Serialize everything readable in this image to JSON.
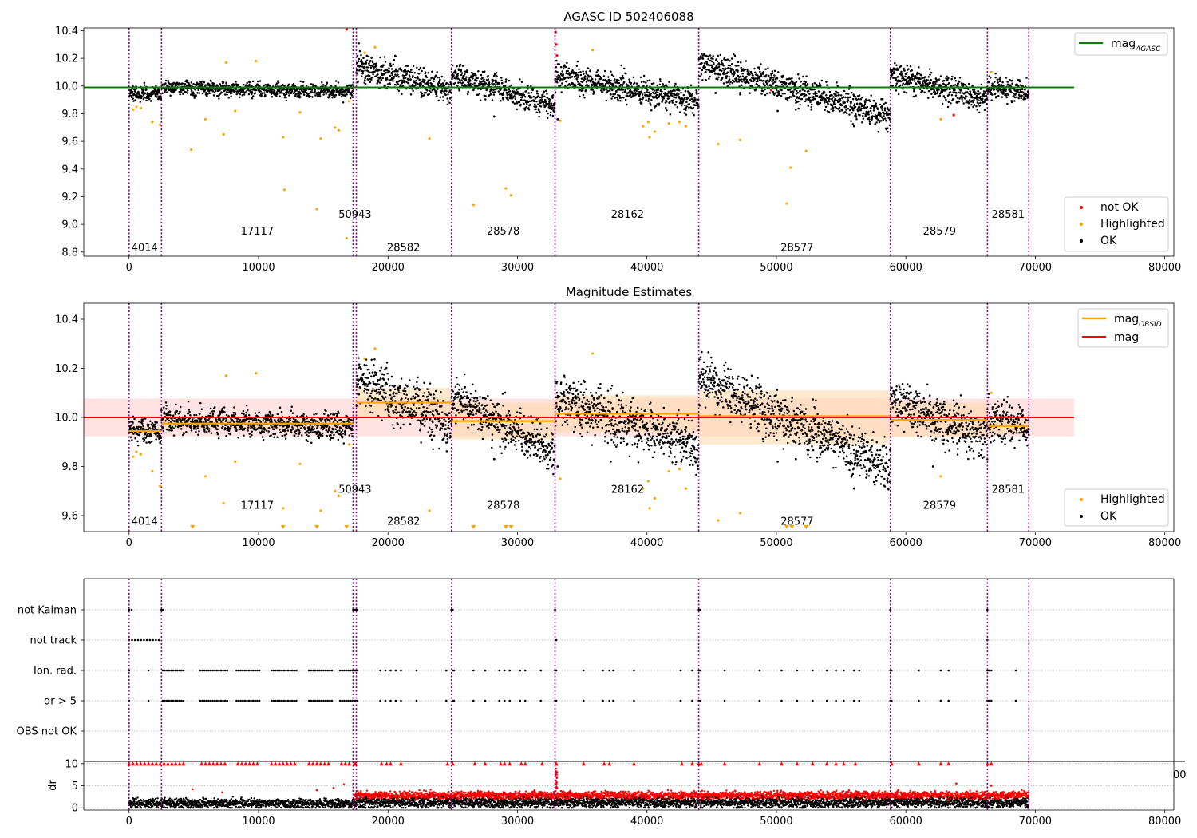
{
  "figure": {
    "agasc_id": "AGASC ID 502406088",
    "top_title": "AGASC ID 502406088",
    "middle_title": "Magnitude Estimates"
  },
  "colors": {
    "agasc": "#008000",
    "mag": "#ff0000",
    "mag_obsid": "#ffa500",
    "ok": "#000000",
    "highlighted": "#ffa500",
    "not_ok": "#ff0000",
    "obsid_line": "#800080",
    "mag_band": "#ffcccc",
    "obsid_band": "#ffd8a8",
    "flag_grid": "#b0b0b0"
  },
  "chart_data": [
    {
      "id": "top",
      "type": "scatter",
      "title": "AGASC ID 502406088",
      "xlim": [
        -3500,
        80700
      ],
      "ylim": [
        8.77,
        10.42
      ],
      "xticks": [
        0,
        10000,
        20000,
        30000,
        40000,
        50000,
        60000,
        70000,
        80000
      ],
      "yticks": [
        8.8,
        9.0,
        9.2,
        9.4,
        9.6,
        9.8,
        10.0,
        10.2,
        10.4
      ],
      "ytick_labels": [
        "8.8",
        "9.0",
        "9.2",
        "9.4",
        "9.6",
        "9.8",
        "10.0",
        "10.2",
        "10.4"
      ],
      "legend": {
        "upper_right": [
          {
            "label": "mag",
            "subscript": "AGASC",
            "kind": "line",
            "color": "#008000"
          }
        ],
        "lower_right": [
          {
            "label": "not OK",
            "kind": "dot",
            "color": "#ff0000"
          },
          {
            "label": "Highlighted",
            "kind": "dot",
            "color": "#ffa500"
          },
          {
            "label": "OK",
            "kind": "dot",
            "color": "#000000"
          }
        ]
      },
      "agasc_line": {
        "x": [
          -3500,
          73000
        ],
        "y": 9.99
      },
      "obsid_boundaries": [
        0,
        2500,
        17300,
        17550,
        24900,
        32900,
        44000,
        58800,
        66300,
        69500
      ],
      "obsid_labels": [
        {
          "text": "4014",
          "x": 1200,
          "y": 8.83
        },
        {
          "text": "17117",
          "x": 9900,
          "y": 8.95
        },
        {
          "text": "50943",
          "x": 17450,
          "y": 9.07
        },
        {
          "text": "28582",
          "x": 21200,
          "y": 8.83
        },
        {
          "text": "28578",
          "x": 28900,
          "y": 8.95
        },
        {
          "text": "28162",
          "x": 38500,
          "y": 9.07
        },
        {
          "text": "28577",
          "x": 51600,
          "y": 8.83
        },
        {
          "text": "28579",
          "x": 62600,
          "y": 8.95
        },
        {
          "text": "28581",
          "x": 67900,
          "y": 9.07
        }
      ],
      "segments": [
        {
          "x0": 0,
          "x1": 2500,
          "start": 9.95,
          "end": 9.94,
          "spread": 0.025
        },
        {
          "x0": 2500,
          "x1": 17300,
          "start": 9.99,
          "end": 9.96,
          "spread": 0.025
        },
        {
          "x0": 17550,
          "x1": 24900,
          "start": 10.15,
          "end": 9.97,
          "spread": 0.05
        },
        {
          "x0": 24900,
          "x1": 32900,
          "start": 10.08,
          "end": 9.86,
          "spread": 0.045
        },
        {
          "x0": 32900,
          "x1": 44000,
          "start": 10.08,
          "end": 9.88,
          "spread": 0.05
        },
        {
          "x0": 44000,
          "x1": 58800,
          "start": 10.16,
          "end": 9.79,
          "spread": 0.05
        },
        {
          "x0": 58800,
          "x1": 66300,
          "start": 10.08,
          "end": 9.91,
          "spread": 0.045
        },
        {
          "x0": 66300,
          "x1": 69500,
          "start": 10.0,
          "end": 9.95,
          "spread": 0.04
        }
      ],
      "highlighted_points": [
        [
          320,
          9.83
        ],
        [
          560,
          9.85
        ],
        [
          900,
          9.84
        ],
        [
          1800,
          9.74
        ],
        [
          2400,
          9.72
        ],
        [
          4800,
          9.54
        ],
        [
          5900,
          9.76
        ],
        [
          7300,
          9.65
        ],
        [
          7500,
          10.17
        ],
        [
          8200,
          9.82
        ],
        [
          9800,
          10.18
        ],
        [
          11900,
          9.63
        ],
        [
          12000,
          9.25
        ],
        [
          13200,
          9.81
        ],
        [
          14500,
          9.11
        ],
        [
          14800,
          9.62
        ],
        [
          15900,
          9.7
        ],
        [
          16200,
          9.68
        ],
        [
          16800,
          8.9
        ],
        [
          17000,
          9.89
        ],
        [
          18200,
          10.24
        ],
        [
          19000,
          10.28
        ],
        [
          23200,
          9.62
        ],
        [
          26600,
          9.14
        ],
        [
          29100,
          9.26
        ],
        [
          29500,
          9.21
        ],
        [
          33300,
          9.75
        ],
        [
          35800,
          10.26
        ],
        [
          39700,
          9.71
        ],
        [
          40100,
          9.74
        ],
        [
          40200,
          9.63
        ],
        [
          40600,
          9.67
        ],
        [
          41700,
          9.73
        ],
        [
          42500,
          9.74
        ],
        [
          43000,
          9.71
        ],
        [
          45500,
          9.58
        ],
        [
          47200,
          9.61
        ],
        [
          50800,
          9.15
        ],
        [
          51100,
          9.41
        ],
        [
          52300,
          9.53
        ],
        [
          62700,
          9.76
        ],
        [
          66600,
          10.1
        ]
      ],
      "not_ok_points": [
        [
          16800,
          10.41
        ],
        [
          32950,
          10.39
        ],
        [
          33000,
          10.3
        ],
        [
          33050,
          10.22
        ],
        [
          49600,
          9.97
        ],
        [
          63700,
          9.79
        ]
      ],
      "outlier_ok_points": [
        [
          4100,
          9.97
        ],
        [
          28200,
          9.78
        ],
        [
          33100,
          9.76
        ],
        [
          37200,
          9.94
        ],
        [
          38800,
          9.92
        ],
        [
          45300,
          9.95
        ],
        [
          47200,
          9.94
        ],
        [
          50100,
          9.82
        ],
        [
          51500,
          9.83
        ],
        [
          56000,
          9.71
        ],
        [
          62100,
          9.92
        ]
      ]
    },
    {
      "id": "middle",
      "type": "scatter",
      "title": "Magnitude Estimates",
      "xlim": [
        -3500,
        80700
      ],
      "ylim": [
        9.535,
        10.465
      ],
      "xticks": [
        0,
        10000,
        20000,
        30000,
        40000,
        50000,
        60000,
        70000,
        80000
      ],
      "yticks": [
        9.6,
        9.8,
        10.0,
        10.2,
        10.4
      ],
      "ytick_labels": [
        "9.6",
        "9.8",
        "10.0",
        "10.2",
        "10.4"
      ],
      "legend": {
        "upper_right": [
          {
            "label": "mag",
            "subscript": "OBSID",
            "kind": "line",
            "color": "#ffa500"
          },
          {
            "label": "mag",
            "kind": "line",
            "color": "#ff0000"
          }
        ],
        "lower_right": [
          {
            "label": "Highlighted",
            "kind": "dot",
            "color": "#ffa500"
          },
          {
            "label": "OK",
            "kind": "dot",
            "color": "#000000"
          }
        ]
      },
      "mag_line": {
        "x": [
          -3500,
          73000
        ],
        "y": 10.0,
        "band": [
          9.923,
          10.077
        ]
      },
      "obsid_means": [
        {
          "x0": 0,
          "x1": 2500,
          "y": 9.945,
          "band": [
            9.93,
            9.96
          ]
        },
        {
          "x0": 2500,
          "x1": 17300,
          "y": 9.975,
          "band": [
            9.955,
            9.995
          ]
        },
        {
          "x0": 17550,
          "x1": 24900,
          "y": 10.06,
          "band": [
            10.0,
            10.12
          ]
        },
        {
          "x0": 24900,
          "x1": 32900,
          "y": 9.985,
          "band": [
            9.91,
            10.06
          ]
        },
        {
          "x0": 32900,
          "x1": 44000,
          "y": 10.015,
          "band": [
            9.94,
            10.09
          ]
        },
        {
          "x0": 44000,
          "x1": 58800,
          "y": 10.005,
          "band": [
            9.89,
            10.11
          ]
        },
        {
          "x0": 58800,
          "x1": 66300,
          "y": 9.99,
          "band": [
            9.92,
            10.06
          ]
        },
        {
          "x0": 66300,
          "x1": 69500,
          "y": 9.965,
          "band": [
            9.93,
            10.0
          ]
        }
      ],
      "obsid_boundaries": [
        0,
        2500,
        17300,
        17550,
        24900,
        32900,
        44000,
        58800,
        66300,
        69500
      ],
      "obsid_labels": [
        {
          "text": "4014",
          "x": 1200,
          "y": 9.575
        },
        {
          "text": "17117",
          "x": 9900,
          "y": 9.64
        },
        {
          "text": "50943",
          "x": 17450,
          "y": 9.705
        },
        {
          "text": "28582",
          "x": 21200,
          "y": 9.575
        },
        {
          "text": "28578",
          "x": 28900,
          "y": 9.64
        },
        {
          "text": "28162",
          "x": 38500,
          "y": 9.705
        },
        {
          "text": "28577",
          "x": 51600,
          "y": 9.575
        },
        {
          "text": "28579",
          "x": 62600,
          "y": 9.64
        },
        {
          "text": "28581",
          "x": 67900,
          "y": 9.705
        }
      ],
      "clipped_low_markers": [
        4900,
        11900,
        14500,
        16800,
        26600,
        29100,
        29500,
        50800,
        51200,
        52300
      ],
      "highlighted_points": [
        [
          320,
          9.84
        ],
        [
          560,
          9.86
        ],
        [
          900,
          9.85
        ],
        [
          1800,
          9.78
        ],
        [
          2400,
          9.72
        ],
        [
          5900,
          9.76
        ],
        [
          7300,
          9.65
        ],
        [
          7500,
          10.17
        ],
        [
          8200,
          9.82
        ],
        [
          9800,
          10.18
        ],
        [
          11900,
          9.63
        ],
        [
          13200,
          9.81
        ],
        [
          14800,
          9.62
        ],
        [
          15900,
          9.7
        ],
        [
          16200,
          9.68
        ],
        [
          17000,
          9.89
        ],
        [
          18200,
          10.24
        ],
        [
          19000,
          10.28
        ],
        [
          23200,
          9.62
        ],
        [
          33300,
          9.75
        ],
        [
          35800,
          10.26
        ],
        [
          39700,
          9.71
        ],
        [
          40100,
          9.74
        ],
        [
          40200,
          9.63
        ],
        [
          40600,
          9.67
        ],
        [
          41700,
          9.78
        ],
        [
          42500,
          9.79
        ],
        [
          43000,
          9.71
        ],
        [
          45500,
          9.58
        ],
        [
          47200,
          9.61
        ],
        [
          62700,
          9.76
        ],
        [
          66600,
          10.1
        ]
      ],
      "outlier_ok_points": [
        [
          28200,
          9.83
        ],
        [
          33100,
          9.8
        ],
        [
          37200,
          9.82
        ],
        [
          50100,
          9.82
        ],
        [
          51500,
          9.83
        ],
        [
          56000,
          9.71
        ],
        [
          62100,
          9.8
        ]
      ]
    },
    {
      "id": "flags",
      "type": "scatter",
      "xlim": [
        -3500,
        80700
      ],
      "categories": [
        "not Kalman",
        "not track",
        "Ion. rad.",
        "dr > 5",
        "OBS not OK"
      ],
      "obsid_boundaries": [
        0,
        2500,
        17300,
        17550,
        24900,
        32900,
        44000,
        58800,
        66300,
        69500
      ],
      "stray_tick_label": "00",
      "not_kalman": [
        0,
        200,
        2500,
        2600,
        17300,
        17400,
        17500,
        17600,
        24900,
        25000,
        32900,
        44000,
        44100,
        58800,
        66300
      ],
      "not_track_range": [
        0,
        2400
      ],
      "not_track_extra": [
        33000,
        66300
      ],
      "flag_clusters": [
        [
          2600,
          4300
        ],
        [
          5500,
          7600
        ],
        [
          8300,
          10200
        ],
        [
          11000,
          13000
        ],
        [
          13900,
          15700
        ],
        [
          16300,
          17300
        ]
      ],
      "flag_sparse": [
        0,
        1500,
        17400,
        17500,
        17600,
        19400,
        19800,
        20200,
        20600,
        21000,
        22200,
        24500,
        25000,
        25100,
        26600,
        27500,
        28600,
        29000,
        29400,
        30200,
        30600,
        31800,
        32900,
        33000,
        35100,
        36600,
        37100,
        37400,
        39000,
        42600,
        43500,
        44000,
        44100,
        46000,
        48700,
        50400,
        51600,
        52800,
        53900,
        54600,
        55200,
        56000,
        56400,
        58800,
        58900,
        61000,
        62700,
        63300,
        66300,
        66400,
        66600,
        68500
      ]
    },
    {
      "id": "dr",
      "type": "scatter",
      "ylabel": "dr",
      "xlim": [
        -3500,
        80700
      ],
      "ylim": [
        -0.5,
        10.5
      ],
      "xticks": [
        0,
        10000,
        20000,
        30000,
        40000,
        50000,
        60000,
        70000,
        80000
      ],
      "yticks": [
        0,
        5,
        10
      ],
      "ytick_labels": [
        "0",
        "5",
        "10"
      ],
      "obsid_boundaries": [
        0,
        2500,
        17300,
        17550,
        24900,
        32900,
        44000,
        58800,
        66300,
        69500
      ],
      "clipped_high": [
        0,
        300,
        600,
        900,
        1200,
        1500,
        1800,
        2100,
        2400,
        2700,
        3000,
        3300,
        3600,
        3900,
        4200,
        5600,
        5900,
        6200,
        6500,
        6800,
        7100,
        7400,
        8400,
        8700,
        9000,
        9300,
        9600,
        9900,
        11000,
        11300,
        11600,
        11900,
        12200,
        12500,
        12800,
        13900,
        14200,
        14500,
        14800,
        15100,
        15400,
        16400,
        16700,
        17000,
        17400,
        17500,
        19500,
        19900,
        20200,
        21000,
        24600,
        25000,
        26700,
        27500,
        28700,
        29000,
        29400,
        30300,
        30600,
        31900,
        33000,
        35100,
        36700,
        37100,
        39000,
        42700,
        43500,
        44000,
        44200,
        46000,
        48700,
        50400,
        51600,
        52800,
        53900,
        54600,
        55200,
        56100,
        58900,
        61000,
        62700,
        63300,
        66300,
        66600
      ],
      "segments": [
        {
          "x0": 0,
          "x1": 17400,
          "level": 1.0,
          "spread": 0.9,
          "red_level": 3.0,
          "red_prob": 0.0
        },
        {
          "x0": 17400,
          "x1": 69500,
          "level": 1.2,
          "spread": 1.0,
          "red_level": 2.8,
          "red_prob": 1.0
        }
      ],
      "spike": {
        "x": 33000,
        "y_max": 10.0
      },
      "red_outliers": [
        [
          4900,
          4.2
        ],
        [
          7200,
          3.5
        ],
        [
          14500,
          4.0
        ],
        [
          15800,
          4.5
        ],
        [
          16600,
          5.3
        ],
        [
          63900,
          5.5
        ],
        [
          66600,
          5.0
        ]
      ]
    }
  ]
}
